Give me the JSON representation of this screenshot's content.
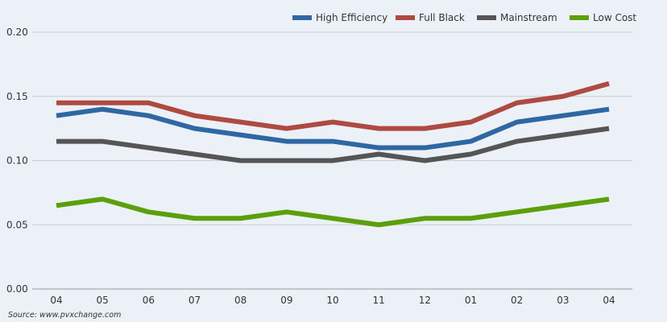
{
  "chart_data": {
    "type": "line",
    "title": "",
    "xlabel": "",
    "ylabel": "",
    "categories": [
      "04",
      "05",
      "06",
      "07",
      "08",
      "09",
      "10",
      "11",
      "12",
      "01",
      "02",
      "03",
      "04"
    ],
    "ylim": [
      0,
      0.2
    ],
    "yticks": [
      "0.00",
      "0.05",
      "0.10",
      "0.15",
      "0.20"
    ],
    "grid": true,
    "legend_position": "top-right",
    "series": [
      {
        "name": "High Efficiency",
        "color": "#2e67a2",
        "values": [
          0.135,
          0.14,
          0.135,
          0.125,
          0.12,
          0.115,
          0.115,
          0.11,
          0.11,
          0.115,
          0.13,
          0.135,
          0.14
        ]
      },
      {
        "name": "Full Black",
        "color": "#ae4a42",
        "values": [
          0.145,
          0.145,
          0.145,
          0.135,
          0.13,
          0.125,
          0.13,
          0.125,
          0.125,
          0.13,
          0.145,
          0.15,
          0.16
        ]
      },
      {
        "name": "Mainstream",
        "color": "#555555",
        "values": [
          0.115,
          0.115,
          0.11,
          0.105,
          0.1,
          0.1,
          0.1,
          0.105,
          0.1,
          0.105,
          0.115,
          0.12,
          0.125
        ]
      },
      {
        "name": "Low Cost",
        "color": "#5c9e0c",
        "values": [
          0.065,
          0.07,
          0.06,
          0.055,
          0.055,
          0.06,
          0.055,
          0.05,
          0.055,
          0.055,
          0.06,
          0.065,
          0.07
        ]
      }
    ],
    "source": "Source: www.pvxchange.com"
  }
}
